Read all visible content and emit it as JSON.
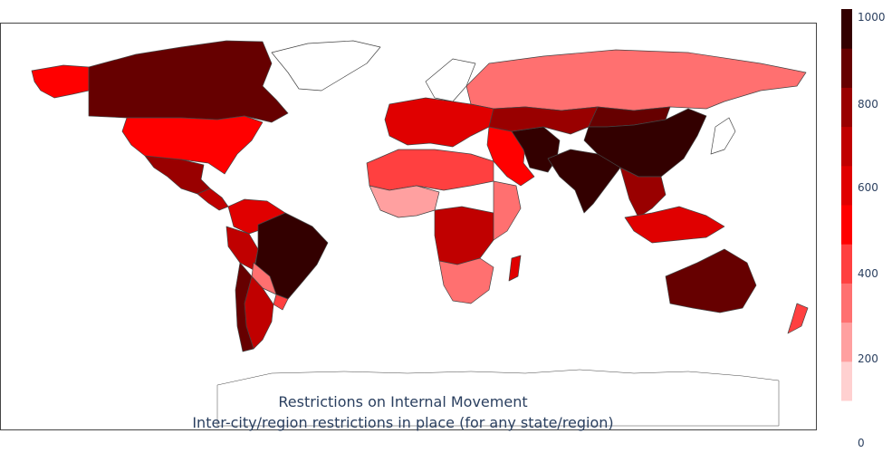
{
  "map": {
    "title_line1": "Restrictions on Internal Movement",
    "title_line2": "Inter-city/region restrictions in place (for any state/region)"
  },
  "colorbar": {
    "ticks": [
      "1000",
      "800",
      "600",
      "400",
      "200",
      "0"
    ],
    "tick_values": [
      1000,
      800,
      600,
      400,
      200,
      0
    ],
    "range": [
      0,
      1000
    ],
    "colors": [
      "#ffd0d0",
      "#ffa0a0",
      "#ff7070",
      "#ff4040",
      "#ff0000",
      "#e00000",
      "#c00000",
      "#990000",
      "#660000",
      "#330000"
    ]
  },
  "regions": [
    {
      "id": "greenland",
      "value": null
    },
    {
      "id": "canada",
      "value": 850
    },
    {
      "id": "alaska",
      "value": 420
    },
    {
      "id": "usa",
      "value": 420
    },
    {
      "id": "mexico",
      "value": 700
    },
    {
      "id": "central-america",
      "value": 600
    },
    {
      "id": "colombia-venezuela",
      "value": 500
    },
    {
      "id": "peru",
      "value": 600
    },
    {
      "id": "brazil",
      "value": 1000
    },
    {
      "id": "bolivia-paraguay",
      "value": 250
    },
    {
      "id": "argentina",
      "value": 600
    },
    {
      "id": "chile",
      "value": 850
    },
    {
      "id": "uruguay",
      "value": 300
    },
    {
      "id": "russia",
      "value": 250
    },
    {
      "id": "western-europe",
      "value": 550
    },
    {
      "id": "scandinavia",
      "value": null
    },
    {
      "id": "north-africa",
      "value": 300
    },
    {
      "id": "west-africa",
      "value": 150
    },
    {
      "id": "central-africa",
      "value": 600
    },
    {
      "id": "east-africa",
      "value": 250
    },
    {
      "id": "southern-africa",
      "value": 200
    },
    {
      "id": "madagascar",
      "value": 500
    },
    {
      "id": "middle-east",
      "value": 400
    },
    {
      "id": "iran",
      "value": 1000
    },
    {
      "id": "central-asia",
      "value": 700
    },
    {
      "id": "india",
      "value": 900
    },
    {
      "id": "china",
      "value": 900
    },
    {
      "id": "mongolia",
      "value": 800
    },
    {
      "id": "southeast-asia",
      "value": 700
    },
    {
      "id": "indonesia",
      "value": 550
    },
    {
      "id": "australia",
      "value": 850
    },
    {
      "id": "new-zealand",
      "value": 350
    },
    {
      "id": "japan",
      "value": null
    },
    {
      "id": "antarctica",
      "value": null
    }
  ]
}
